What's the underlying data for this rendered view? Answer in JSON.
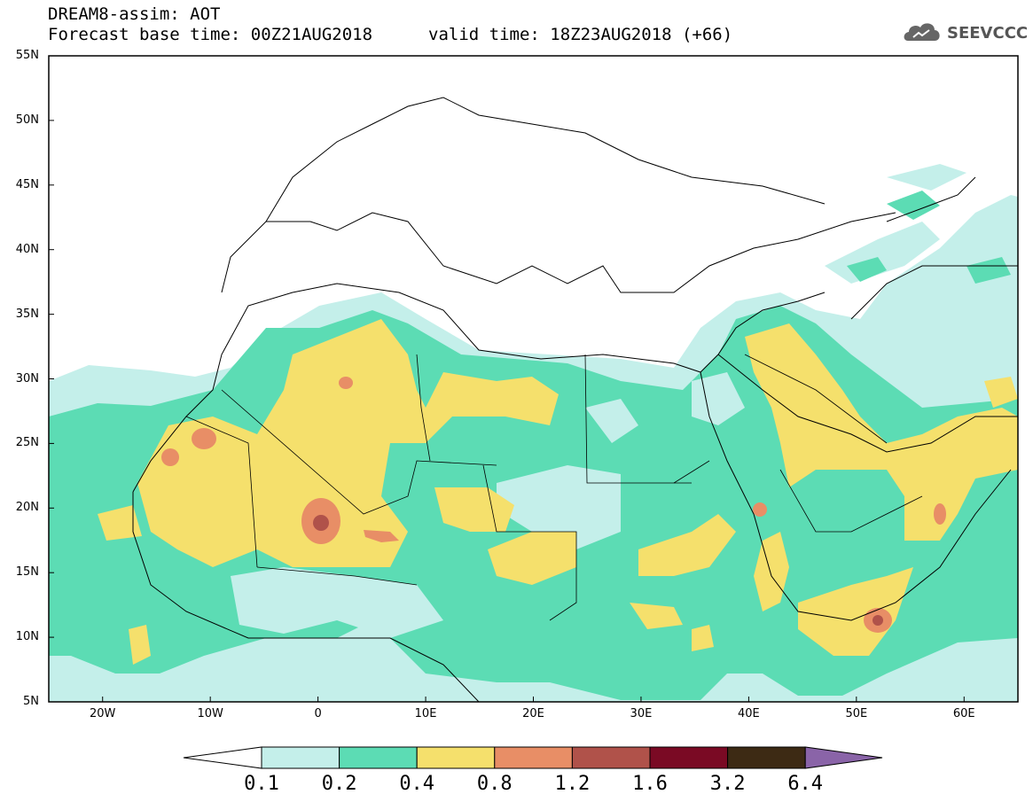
{
  "header": {
    "title_line1": "DREAM8-assim: AOT",
    "title_line2": "Forecast base time: 00Z21AUG2018",
    "valid_time": "valid time: 18Z23AUG2018 (+66)",
    "logo_text": "SEEVCCC"
  },
  "map": {
    "lat_labels": [
      "55N",
      "50N",
      "45N",
      "40N",
      "35N",
      "30N",
      "25N",
      "20N",
      "15N",
      "10N",
      "5N"
    ],
    "lon_labels": [
      "20W",
      "10W",
      "0",
      "10E",
      "20E",
      "30E",
      "40E",
      "50E",
      "60E"
    ],
    "lon_range": [
      -25,
      65
    ],
    "lat_range": [
      5,
      55
    ]
  },
  "colorbar": {
    "labels": [
      "0.1",
      "0.2",
      "0.4",
      "0.8",
      "1.2",
      "1.6",
      "3.2",
      "6.4"
    ],
    "colors": [
      "#c4efea",
      "#5cdcb4",
      "#f5e06c",
      "#e88e66",
      "#b0524a",
      "#7a0a24",
      "#3d2a14",
      "#8a64a8"
    ]
  }
}
